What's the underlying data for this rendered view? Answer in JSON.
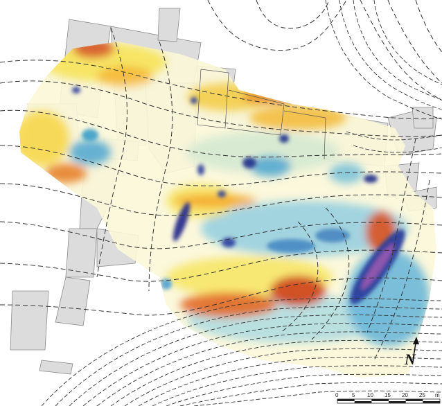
{
  "map": {
    "north_arrow": {
      "label": "N"
    },
    "scale_bar": {
      "ticks": [
        "0",
        "5",
        "10",
        "15",
        "20",
        "25"
      ],
      "unit": "m"
    },
    "legend_colors": {
      "very_low": "#3b1f7a",
      "low": "#2b3f9c",
      "low_mid": "#55a8d0",
      "mid": "#bfe0cf",
      "neutral": "#ffffff",
      "high_mid": "#f6e35a",
      "high": "#f3a322",
      "very_high": "#c8401e"
    }
  }
}
